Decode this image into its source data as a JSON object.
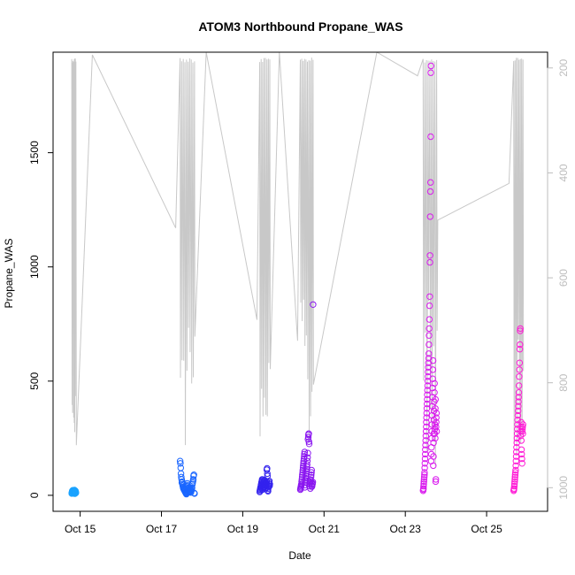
{
  "chart_data": {
    "type": "scatter",
    "title": "ATOM3 Northbound Propane_WAS",
    "xlabel": "Date",
    "ylabel": "Propane_WAS",
    "x_unit": "date (October 2017)",
    "xlim": [
      "Oct 14 8:00",
      "Oct 26 12:00"
    ],
    "ylim": [
      -70,
      1940
    ],
    "x_ticks": [
      "Oct 15",
      "Oct 17",
      "Oct 19",
      "Oct 21",
      "Oct 23",
      "Oct 25"
    ],
    "y_ticks": [
      0,
      500,
      1000,
      1500
    ],
    "y2_ticks": [
      200,
      400,
      600,
      800,
      1000
    ],
    "y2_axis": {
      "side": "right",
      "reversed": true,
      "color": "#bdbdbd",
      "range": [
        170,
        1045
      ]
    },
    "grid": false,
    "legend": "none",
    "colors": {
      "cluster_1": "#1aa3ff",
      "cluster_2": "#1a66ff",
      "cluster_3": "#3322ee",
      "cluster_4": "#8a16f0",
      "cluster_5": "#d91aee",
      "cluster_6": "#ff1ad6",
      "altitude_trace": "#c8c8c8"
    },
    "clusters": [
      {
        "x_start": "Oct 14 19:00",
        "x_end": "Oct 14 21:30",
        "values": [
          8,
          12,
          15,
          18,
          20,
          10,
          22,
          14,
          16,
          9,
          19,
          13,
          17,
          21,
          11,
          23,
          15,
          7,
          18,
          12,
          20,
          16,
          14,
          10
        ]
      },
      {
        "x_start": "Oct 17 11:00",
        "x_end": "Oct 17 19:30",
        "values": [
          150,
          140,
          120,
          95,
          80,
          70,
          55,
          60,
          48,
          42,
          35,
          30,
          28,
          25,
          22,
          20,
          18,
          15,
          12,
          10,
          8,
          5,
          40,
          45,
          52,
          38,
          33,
          27,
          24,
          19,
          16,
          14,
          30,
          35,
          20,
          25,
          12,
          18,
          22,
          28,
          33,
          48,
          55,
          62,
          70,
          85,
          90,
          10,
          8
        ]
      },
      {
        "x_start": "Oct 19 10:00",
        "x_end": "Oct 19 16:00",
        "values": [
          15,
          20,
          25,
          30,
          35,
          40,
          45,
          50,
          55,
          60,
          65,
          70,
          25,
          30,
          35,
          42,
          48,
          52,
          58,
          62,
          68,
          38,
          45,
          50,
          55,
          28,
          33,
          40,
          47,
          53,
          60,
          112,
          118,
          95,
          85,
          22,
          18,
          30,
          36,
          44,
          51,
          57,
          63,
          41,
          49
        ]
      },
      {
        "x_start": "Oct 20 10:00",
        "x_end": "Oct 20 17:30",
        "values": [
          25,
          30,
          35,
          40,
          45,
          50,
          60,
          70,
          80,
          90,
          100,
          110,
          120,
          130,
          140,
          150,
          160,
          170,
          180,
          190,
          35,
          45,
          55,
          65,
          75,
          85,
          95,
          105,
          115,
          125,
          135,
          150,
          165,
          185,
          245,
          255,
          265,
          270,
          235,
          225,
          40,
          50,
          60,
          70,
          30,
          55,
          65,
          80,
          90,
          100,
          110,
          38,
          42,
          48,
          52,
          58,
          835
        ]
      },
      {
        "x_start": "Oct 23 10:30",
        "x_end": "Oct 23 18:30",
        "values": [
          20,
          25,
          30,
          40,
          50,
          60,
          70,
          80,
          90,
          100,
          120,
          140,
          160,
          180,
          200,
          220,
          240,
          260,
          280,
          300,
          320,
          340,
          360,
          380,
          400,
          420,
          440,
          460,
          480,
          500,
          520,
          540,
          560,
          580,
          600,
          620,
          660,
          700,
          730,
          770,
          830,
          870,
          1020,
          1050,
          1220,
          1330,
          1370,
          1570,
          1850,
          1880,
          150,
          180,
          210,
          250,
          280,
          310,
          350,
          390,
          430,
          470,
          510,
          550,
          590,
          130,
          170,
          230,
          270,
          330,
          370,
          410,
          450,
          490,
          270,
          290,
          310,
          250,
          380,
          420,
          60,
          70,
          300,
          320,
          340,
          360,
          280
        ]
      },
      {
        "x_start": "Oct 25 16:00",
        "x_end": "Oct 25 21:30",
        "values": [
          20,
          25,
          30,
          40,
          50,
          60,
          70,
          80,
          90,
          100,
          110,
          130,
          150,
          170,
          190,
          210,
          230,
          250,
          270,
          290,
          310,
          330,
          350,
          370,
          390,
          410,
          430,
          450,
          480,
          520,
          550,
          580,
          640,
          660,
          720,
          730,
          260,
          280,
          300,
          320,
          240,
          200,
          180,
          160,
          140,
          280,
          290,
          300,
          270,
          310
        ]
      }
    ],
    "altitude_trace_note": "light grey line plotted against the reversed right axis"
  }
}
